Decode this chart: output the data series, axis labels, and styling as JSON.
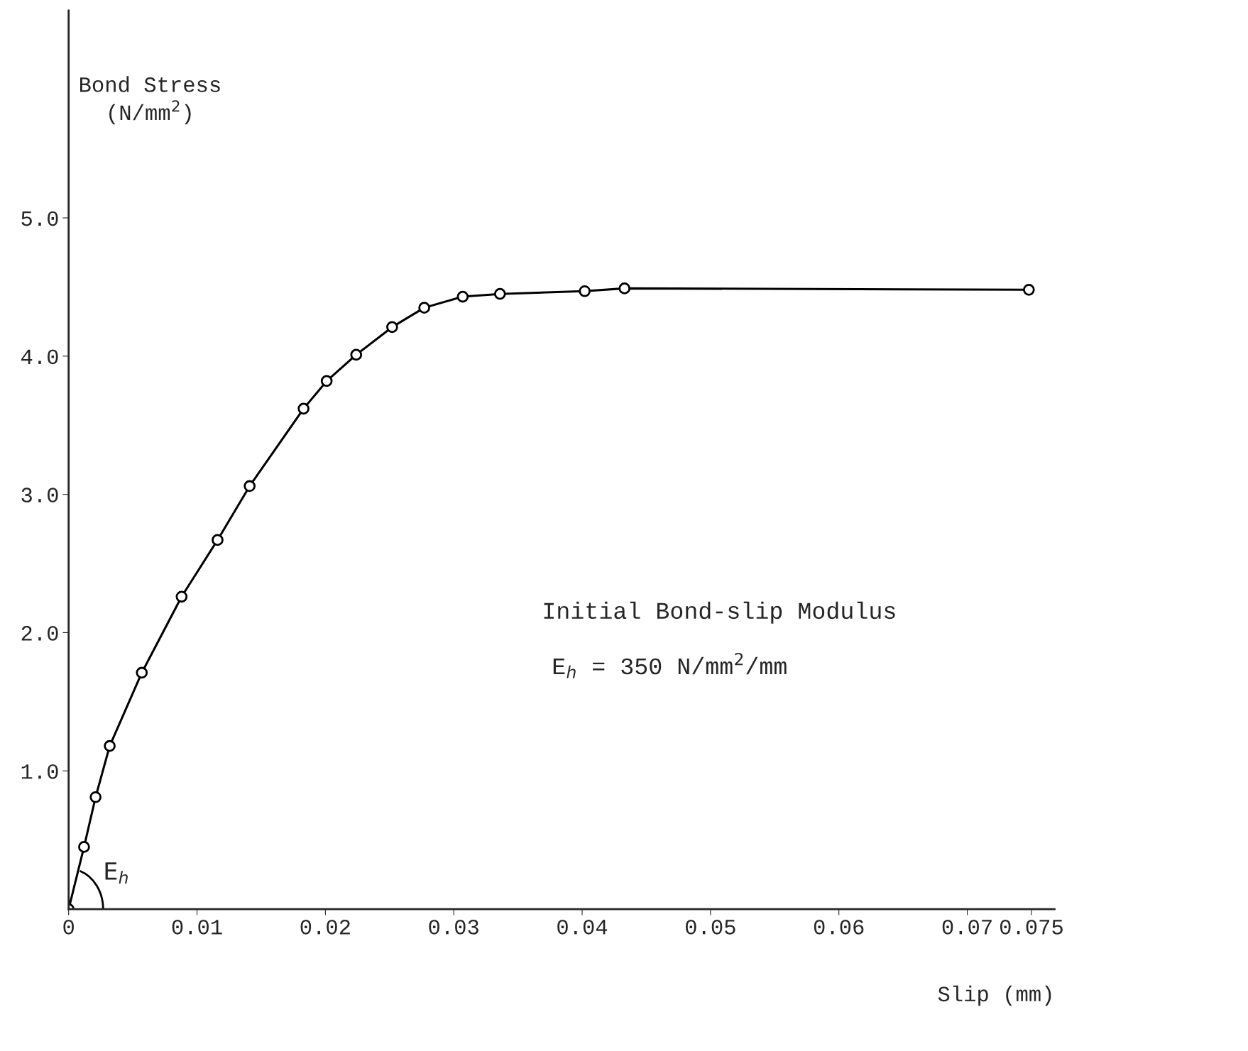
{
  "chart_data": {
    "type": "line",
    "xlabel": "Slip (mm)",
    "ylabel": "Bond Stress\n(N/mm$^{2}$)",
    "x": [
      0,
      0.0012,
      0.0021,
      0.0032,
      0.0057,
      0.0088,
      0.0116,
      0.0141,
      0.0183,
      0.0201,
      0.0224,
      0.0252,
      0.0277,
      0.0307,
      0.0336,
      0.0402,
      0.0433,
      0.0748
    ],
    "series": [
      {
        "color": "#000000",
        "values": [
          0,
          0.45,
          0.81,
          1.18,
          1.71,
          2.26,
          2.67,
          3.06,
          3.62,
          3.82,
          4.01,
          4.21,
          4.35,
          4.43,
          4.45,
          4.47,
          4.49,
          4.48
        ]
      }
    ],
    "xlim": [
      0,
      0.0768
    ],
    "ylim": [
      0,
      6.5
    ],
    "xticks": [
      0,
      0.01,
      0.02,
      0.03,
      0.04,
      0.05,
      0.06,
      0.07,
      0.075
    ],
    "yticks": [
      {
        "value": 1,
        "label": "1.0"
      },
      {
        "value": 2,
        "label": "2.0"
      },
      {
        "value": 3,
        "label": "3.0"
      },
      {
        "value": 4,
        "label": "4.0"
      },
      {
        "value": 5,
        "label": "5.0"
      }
    ],
    "annotations": [
      "Initial Bond-slip Modulus",
      "E$_{h}$ = 350 N/mm$^{2}$/mm",
      "E$_{h}$"
    ],
    "marker": "circle",
    "line_style": "solid",
    "grid": false,
    "legend": false
  }
}
